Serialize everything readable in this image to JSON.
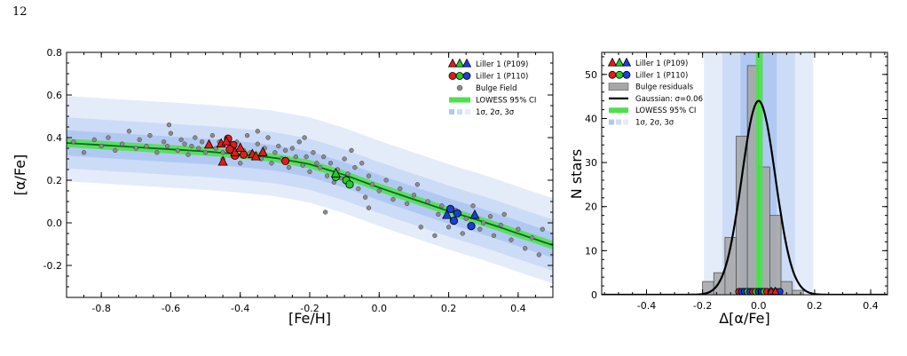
{
  "page_number": "12",
  "colors": {
    "band3": "#e4ecfa",
    "band2": "#cddcf6",
    "band1": "#b1c9f2",
    "ci": "#4ee04e",
    "lowess": "#0b6b16",
    "p109_red": "#e61a1a",
    "p109_green": "#22cc22",
    "p109_blue": "#1a3fd8",
    "field": "#8c8c8c",
    "hist": "#a6a6a6"
  },
  "chart_data": [
    {
      "type": "scatter",
      "xlabel": "[Fe/H]",
      "ylabel": "[α/Fe]",
      "xlim": [
        -0.9,
        0.5
      ],
      "ylim": [
        -0.35,
        0.8
      ],
      "xticks": [
        "-0.8",
        "-0.6",
        "-0.4",
        "-0.2",
        "0.0",
        "0.2",
        "0.4"
      ],
      "xtick_values": [
        -0.8,
        -0.6,
        -0.4,
        -0.2,
        0.0,
        0.2,
        0.4
      ],
      "yticks": [
        "-0.2",
        "0.0",
        "0.2",
        "0.4",
        "0.6",
        "0.8"
      ],
      "ytick_values": [
        -0.2,
        0.0,
        0.2,
        0.4,
        0.6,
        0.8
      ],
      "legend_position": "top-right",
      "legend": [
        "Liller 1 (P109)",
        "Liller 1 (P110)",
        "Bulge Field",
        "LOWESS 95% CI",
        "1σ, 2σ, 3σ"
      ],
      "lowess_curve": {
        "x": [
          -0.9,
          -0.8,
          -0.7,
          -0.6,
          -0.5,
          -0.4,
          -0.3,
          -0.2,
          -0.1,
          0.0,
          0.1,
          0.2,
          0.3,
          0.4,
          0.5
        ],
        "y": [
          0.375,
          0.365,
          0.355,
          0.345,
          0.335,
          0.322,
          0.305,
          0.275,
          0.225,
          0.165,
          0.11,
          0.055,
          0.005,
          -0.05,
          -0.105
        ],
        "ci_halfwidth": 0.02,
        "sigma": 0.06,
        "band3_extra_top": 0.04
      },
      "liller_p109": [
        {
          "x": -0.49,
          "y": 0.365,
          "color": "red"
        },
        {
          "x": -0.455,
          "y": 0.37,
          "color": "red"
        },
        {
          "x": -0.44,
          "y": 0.38,
          "color": "red"
        },
        {
          "x": -0.45,
          "y": 0.285,
          "color": "red"
        },
        {
          "x": -0.415,
          "y": 0.33,
          "color": "red"
        },
        {
          "x": -0.4,
          "y": 0.35,
          "color": "red"
        },
        {
          "x": -0.365,
          "y": 0.32,
          "color": "red"
        },
        {
          "x": -0.355,
          "y": 0.31,
          "color": "red"
        },
        {
          "x": -0.335,
          "y": 0.33,
          "color": "red"
        },
        {
          "x": -0.125,
          "y": 0.23,
          "color": "green"
        },
        {
          "x": 0.195,
          "y": 0.035,
          "color": "blue"
        },
        {
          "x": 0.275,
          "y": 0.035,
          "color": "blue"
        }
      ],
      "liller_p110": [
        {
          "x": -0.435,
          "y": 0.395,
          "color": "red"
        },
        {
          "x": -0.42,
          "y": 0.365,
          "color": "red"
        },
        {
          "x": -0.43,
          "y": 0.345,
          "color": "red"
        },
        {
          "x": -0.415,
          "y": 0.315,
          "color": "red"
        },
        {
          "x": -0.39,
          "y": 0.32,
          "color": "red"
        },
        {
          "x": -0.27,
          "y": 0.29,
          "color": "red"
        },
        {
          "x": -0.125,
          "y": 0.215,
          "color": "green"
        },
        {
          "x": -0.095,
          "y": 0.2,
          "color": "green"
        },
        {
          "x": -0.085,
          "y": 0.18,
          "color": "green"
        },
        {
          "x": 0.205,
          "y": 0.065,
          "color": "blue"
        },
        {
          "x": 0.225,
          "y": 0.045,
          "color": "blue"
        },
        {
          "x": 0.215,
          "y": 0.01,
          "color": "blue"
        },
        {
          "x": 0.265,
          "y": -0.015,
          "color": "blue"
        }
      ],
      "bulge_field": [
        [
          -0.88,
          0.38
        ],
        [
          -0.85,
          0.33
        ],
        [
          -0.82,
          0.39
        ],
        [
          -0.8,
          0.36
        ],
        [
          -0.78,
          0.4
        ],
        [
          -0.76,
          0.34
        ],
        [
          -0.74,
          0.37
        ],
        [
          -0.72,
          0.43
        ],
        [
          -0.7,
          0.35
        ],
        [
          -0.69,
          0.39
        ],
        [
          -0.67,
          0.36
        ],
        [
          -0.66,
          0.41
        ],
        [
          -0.64,
          0.33
        ],
        [
          -0.62,
          0.38
        ],
        [
          -0.61,
          0.36
        ],
        [
          -0.6,
          0.42
        ],
        [
          -0.58,
          0.34
        ],
        [
          -0.57,
          0.39
        ],
        [
          -0.56,
          0.37
        ],
        [
          -0.55,
          0.32
        ],
        [
          -0.54,
          0.36
        ],
        [
          -0.53,
          0.4
        ],
        [
          -0.52,
          0.35
        ],
        [
          -0.51,
          0.38
        ],
        [
          -0.5,
          0.33
        ],
        [
          -0.48,
          0.41
        ],
        [
          -0.47,
          0.35
        ],
        [
          -0.46,
          0.38
        ],
        [
          -0.45,
          0.33
        ],
        [
          -0.43,
          0.36
        ],
        [
          -0.42,
          0.31
        ],
        [
          -0.41,
          0.38
        ],
        [
          -0.4,
          0.28
        ],
        [
          -0.39,
          0.34
        ],
        [
          -0.38,
          0.41
        ],
        [
          -0.37,
          0.33
        ],
        [
          -0.35,
          0.37
        ],
        [
          -0.34,
          0.3
        ],
        [
          -0.33,
          0.35
        ],
        [
          -0.32,
          0.4
        ],
        [
          -0.31,
          0.28
        ],
        [
          -0.3,
          0.33
        ],
        [
          -0.29,
          0.36
        ],
        [
          -0.28,
          0.3
        ],
        [
          -0.27,
          0.34
        ],
        [
          -0.26,
          0.26
        ],
        [
          -0.25,
          0.35
        ],
        [
          -0.24,
          0.31
        ],
        [
          -0.23,
          0.38
        ],
        [
          -0.22,
          0.27
        ],
        [
          -0.21,
          0.31
        ],
        [
          -0.2,
          0.24
        ],
        [
          -0.19,
          0.33
        ],
        [
          -0.18,
          0.28
        ],
        [
          -0.17,
          0.26
        ],
        [
          -0.16,
          0.31
        ],
        [
          -0.155,
          0.05
        ],
        [
          -0.15,
          0.22
        ],
        [
          -0.14,
          0.28
        ],
        [
          -0.13,
          0.19
        ],
        [
          -0.12,
          0.25
        ],
        [
          -0.11,
          0.21
        ],
        [
          -0.1,
          0.3
        ],
        [
          -0.09,
          0.23
        ],
        [
          -0.08,
          0.34
        ],
        [
          -0.07,
          0.26
        ],
        [
          -0.06,
          0.16
        ],
        [
          -0.05,
          0.28
        ],
        [
          -0.04,
          0.12
        ],
        [
          -0.03,
          0.22
        ],
        [
          -0.02,
          0.18
        ],
        [
          0.0,
          0.15
        ],
        [
          0.02,
          0.2
        ],
        [
          0.04,
          0.11
        ],
        [
          0.06,
          0.16
        ],
        [
          0.08,
          0.09
        ],
        [
          0.1,
          0.13
        ],
        [
          0.12,
          -0.02
        ],
        [
          0.14,
          0.1
        ],
        [
          0.16,
          -0.06
        ],
        [
          0.17,
          0.04
        ],
        [
          0.18,
          0.08
        ],
        [
          0.2,
          -0.02
        ],
        [
          0.22,
          0.06
        ],
        [
          0.24,
          -0.05
        ],
        [
          0.25,
          0.02
        ],
        [
          0.27,
          0.08
        ],
        [
          0.29,
          -0.03
        ],
        [
          0.3,
          0.0
        ],
        [
          0.32,
          0.03
        ],
        [
          0.33,
          -0.06
        ],
        [
          0.35,
          -0.01
        ],
        [
          0.36,
          0.04
        ],
        [
          0.38,
          -0.08
        ],
        [
          0.4,
          -0.03
        ],
        [
          0.42,
          -0.12
        ],
        [
          0.44,
          -0.07
        ],
        [
          0.46,
          -0.15
        ],
        [
          0.47,
          -0.03
        ],
        [
          -0.605,
          0.46
        ],
        [
          -0.35,
          0.43
        ],
        [
          -0.215,
          0.4
        ],
        [
          -0.45,
          0.3
        ],
        [
          0.11,
          0.18
        ],
        [
          -0.03,
          0.07
        ]
      ]
    },
    {
      "type": "bar",
      "xlabel": "Δ[α/Fe]",
      "ylabel": "N stars",
      "xlim": [
        -0.56,
        0.46
      ],
      "ylim": [
        0,
        55
      ],
      "xticks": [
        "-0.4",
        "-0.2",
        "0.0",
        "0.2",
        "0.4"
      ],
      "xtick_values": [
        -0.4,
        -0.2,
        0.0,
        0.2,
        0.4
      ],
      "yticks": [
        "0",
        "10",
        "20",
        "30",
        "40",
        "50"
      ],
      "ytick_values": [
        0,
        10,
        20,
        30,
        40,
        50
      ],
      "legend_position": "top-left",
      "legend": [
        "Liller 1 (P109)",
        "Liller 1 (P110)",
        "Bulge residuals",
        "Gaussian: σ=0.06",
        "LOWESS 95% CI",
        "1σ, 2σ, 3σ"
      ],
      "hist_bins": [
        -0.2,
        -0.16,
        -0.12,
        -0.08,
        -0.04,
        0.0,
        0.04,
        0.08,
        0.12,
        0.16,
        0.2
      ],
      "hist_counts": [
        3,
        5,
        13,
        36,
        52,
        29,
        18,
        3,
        1,
        0
      ],
      "gaussian": {
        "mu": 0.0,
        "sigma": 0.06,
        "peak": 44
      },
      "ci_band": [
        -0.01,
        0.015
      ],
      "sigma_bands": [
        0.065,
        0.13,
        0.195
      ],
      "liller_residuals_circles": [
        -0.07,
        -0.06,
        -0.05,
        -0.04,
        -0.03,
        -0.02,
        -0.01,
        0.0,
        0.01,
        0.02,
        0.03,
        0.045,
        0.06,
        0.075
      ],
      "liller_residuals_triangles": [
        0.045,
        0.06
      ]
    }
  ]
}
